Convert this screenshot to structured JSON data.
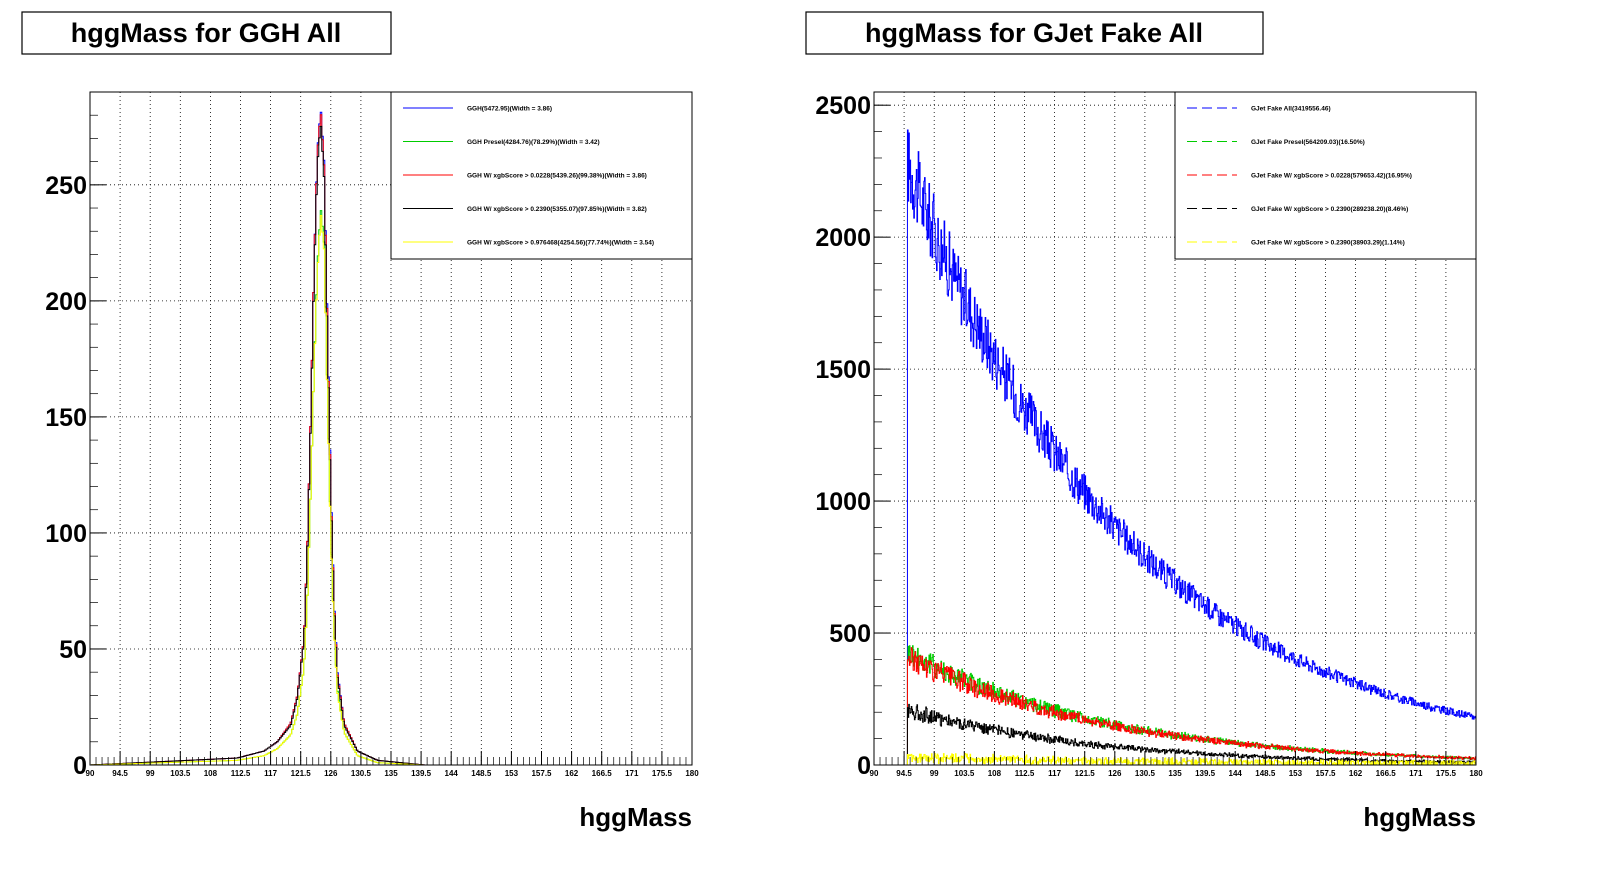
{
  "chart_data": [
    {
      "type": "line",
      "title": "hggMass for GGH All",
      "xlabel": "hggMass",
      "ylabel": "",
      "xlim": [
        90,
        180
      ],
      "ylim": [
        0,
        290
      ],
      "x_ticks": [
        "90",
        "94.5",
        "99",
        "103.5",
        "108",
        "112.5",
        "117",
        "121.5",
        "126",
        "130.5",
        "135",
        "139.5",
        "144",
        "148.5",
        "153",
        "157.5",
        "162",
        "166.5",
        "171",
        "175.5",
        "180"
      ],
      "y_ticks": [
        0,
        50,
        100,
        150,
        200,
        250
      ],
      "grid": true,
      "legend_position": "top-right",
      "series": [
        {
          "name": "GGH(5472.95)(Width = 3.86)",
          "color": "#0000ff",
          "x": [
            90,
            112,
            116,
            118,
            120,
            121,
            122,
            122.5,
            123,
            123.5,
            124,
            124.5,
            125,
            125.5,
            126,
            126.5,
            127,
            128,
            130,
            133,
            140,
            180
          ],
          "y": [
            0,
            3,
            6,
            10,
            18,
            30,
            55,
            95,
            150,
            215,
            265,
            283,
            260,
            190,
            120,
            70,
            40,
            18,
            6,
            2,
            0,
            0
          ]
        },
        {
          "name": "GGH Presel(4284.76)(78.29%)(Width = 3.42)",
          "color": "#00cc00",
          "x": [
            90,
            112,
            116,
            118,
            120,
            121,
            122,
            122.5,
            123,
            123.5,
            124,
            124.5,
            125,
            125.5,
            126,
            126.5,
            127,
            128,
            130,
            133,
            140,
            180
          ],
          "y": [
            0,
            2,
            4,
            7,
            13,
            22,
            42,
            72,
            118,
            170,
            215,
            240,
            225,
            160,
            100,
            58,
            32,
            14,
            4,
            1,
            0,
            0
          ]
        },
        {
          "name": "GGH W/ xgbScore > 0.0228(5439.26)(99.38%)(Width = 3.86)",
          "color": "#ff0000",
          "x": [
            90,
            112,
            116,
            118,
            120,
            121,
            122,
            122.5,
            123,
            123.5,
            124,
            124.5,
            125,
            125.5,
            126,
            126.5,
            127,
            128,
            130,
            133,
            140,
            180
          ],
          "y": [
            0,
            3,
            6,
            10,
            18,
            30,
            55,
            95,
            150,
            215,
            264,
            282,
            258,
            188,
            118,
            69,
            39,
            18,
            6,
            2,
            0,
            0
          ]
        },
        {
          "name": "GGH W/ xgbScore > 0.2390(5355.07)(97.85%)(Width = 3.82)",
          "color": "#000000",
          "x": [
            90,
            112,
            116,
            118,
            120,
            121,
            122,
            122.5,
            123,
            123.5,
            124,
            124.5,
            125,
            125.5,
            126,
            126.5,
            127,
            128,
            130,
            133,
            140,
            180
          ],
          "y": [
            0,
            3,
            6,
            10,
            17,
            29,
            54,
            93,
            147,
            211,
            259,
            277,
            253,
            185,
            116,
            68,
            38,
            17,
            6,
            2,
            0,
            0
          ]
        },
        {
          "name": "GGH W/ xgbScore > 0.976468(4254.56)(77.74%)(Width = 3.54)",
          "color": "#ffff00",
          "x": [
            90,
            112,
            116,
            118,
            120,
            121,
            122,
            122.5,
            123,
            123.5,
            124,
            124.5,
            125,
            125.5,
            126,
            126.5,
            127,
            128,
            130,
            133,
            140,
            180
          ],
          "y": [
            0,
            2,
            4,
            7,
            13,
            22,
            42,
            72,
            118,
            170,
            212,
            238,
            222,
            158,
            98,
            57,
            31,
            14,
            4,
            1,
            0,
            0
          ]
        }
      ]
    },
    {
      "type": "line",
      "title": "hggMass for GJet Fake All",
      "xlabel": "hggMass",
      "ylabel": "",
      "xlim": [
        90,
        180
      ],
      "ylim": [
        0,
        2550
      ],
      "x_ticks": [
        "90",
        "94.5",
        "99",
        "103.5",
        "108",
        "112.5",
        "117",
        "121.5",
        "126",
        "130.5",
        "135",
        "139.5",
        "144",
        "148.5",
        "153",
        "157.5",
        "162",
        "166.5",
        "171",
        "175.5",
        "180"
      ],
      "y_ticks": [
        0,
        500,
        1000,
        1500,
        2000,
        2500
      ],
      "grid": true,
      "legend_position": "top-right",
      "series": [
        {
          "name": "GJet Fake All(3419556.46)",
          "color": "#0000ff",
          "start": 95,
          "end": 180,
          "y_start": 2280,
          "y_end": 180,
          "decay": 31,
          "noise": 0.07
        },
        {
          "name": "GJet Fake Presel(564209.03)(16.50%)",
          "color": "#00cc00",
          "start": 95,
          "end": 180,
          "y_start": 430,
          "y_end": 25,
          "decay": 27,
          "noise": 0.12
        },
        {
          "name": "GJet Fake W/ xgbScore > 0.0228(579653.42)(16.95%)",
          "color": "#ff0000",
          "start": 95,
          "end": 180,
          "y_start": 410,
          "y_end": 25,
          "decay": 28,
          "noise": 0.12
        },
        {
          "name": "GJet Fake W/ xgbScore > 0.2390(289238.20)(8.46%)",
          "color": "#000000",
          "start": 95,
          "end": 180,
          "y_start": 210,
          "y_end": 10,
          "decay": 30,
          "noise": 0.15
        },
        {
          "name": "GJet Fake W/ xgbScore > 0.2390(38903.29)(1.14%)",
          "color": "#ffff00",
          "start": 95,
          "end": 180,
          "y_start": 30,
          "y_end": 4,
          "decay": 40,
          "noise": 0.4
        }
      ]
    }
  ]
}
